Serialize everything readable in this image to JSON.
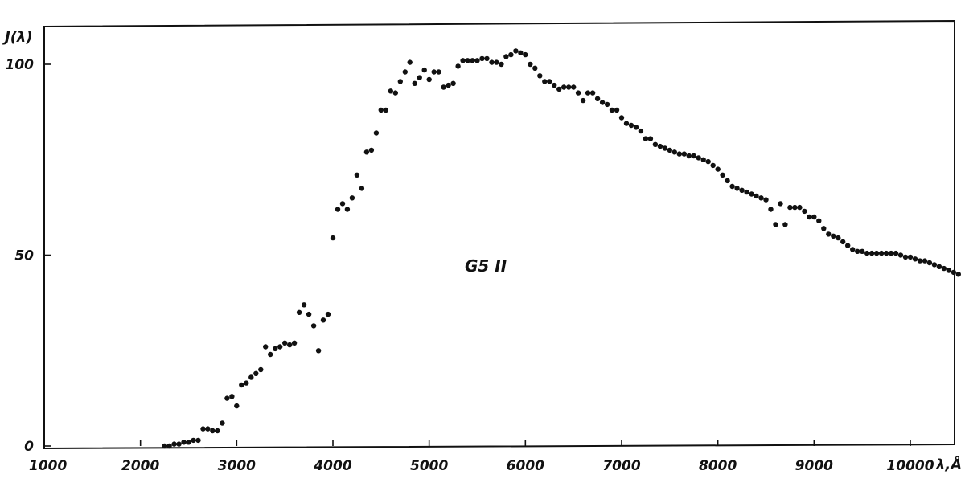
{
  "chart_data": {
    "type": "scatter",
    "title": "",
    "xlabel": "λ,Å",
    "ylabel": "J(λ)",
    "annotation": "G5 II",
    "xlim": [
      1000,
      10600
    ],
    "ylim": [
      0,
      110
    ],
    "grid": false,
    "legend": "none",
    "xticks": [
      1000,
      2000,
      3000,
      4000,
      5000,
      6000,
      7000,
      8000,
      9000,
      10000
    ],
    "yticks": [
      0,
      50,
      100
    ],
    "series": [
      {
        "x": [
          2250,
          2300,
          2350,
          2400,
          2450,
          2500,
          2550,
          2600,
          2650,
          2700,
          2750,
          2800,
          2850,
          2900,
          2950,
          3000,
          3050,
          3100,
          3150,
          3200,
          3250,
          3300,
          3350,
          3400,
          3450,
          3500,
          3550,
          3600,
          3650,
          3700,
          3750,
          3800,
          3850,
          3900,
          3950,
          4000,
          4050,
          4100,
          4150,
          4200,
          4250,
          4300,
          4350,
          4400,
          4450,
          4500,
          4550,
          4600,
          4650,
          4700,
          4750,
          4800,
          4850,
          4900,
          4950,
          5000,
          5050,
          5100,
          5150,
          5200,
          5250,
          5300,
          5350,
          5400,
          5450,
          5500,
          5550,
          5600,
          5650,
          5700,
          5750,
          5800,
          5850,
          5900,
          5950,
          6000,
          6050,
          6100,
          6150,
          6200,
          6250,
          6300,
          6350,
          6400,
          6450,
          6500,
          6550,
          6600,
          6650,
          6700,
          6750,
          6800,
          6850,
          6900,
          6950,
          7000,
          7050,
          7100,
          7150,
          7200,
          7250,
          7300,
          7350,
          7400,
          7450,
          7500,
          7550,
          7600,
          7650,
          7700,
          7750,
          7800,
          7850,
          7900,
          7950,
          8000,
          8050,
          8100,
          8150,
          8200,
          8250,
          8300,
          8350,
          8400,
          8450,
          8500,
          8550,
          8600,
          8650,
          8700,
          8750,
          8800,
          8850,
          8900,
          8950,
          9000,
          9050,
          9100,
          9150,
          9200,
          9250,
          9300,
          9350,
          9400,
          9450,
          9500,
          9550,
          9600,
          9650,
          9700,
          9750,
          9800,
          9850,
          9900,
          9950,
          10000,
          10050,
          10100,
          10150,
          10200,
          10250,
          10300,
          10350,
          10400,
          10450,
          10500
        ],
        "y": [
          0,
          0,
          0.5,
          0.5,
          1,
          1,
          1.5,
          1.5,
          4.5,
          4.5,
          4,
          4,
          6,
          12.5,
          13,
          10.5,
          16,
          16.5,
          18,
          19,
          20,
          26,
          24,
          25.5,
          26,
          27,
          26.5,
          27,
          35,
          37,
          34.5,
          31.5,
          25,
          33,
          34.5,
          54.5,
          62,
          63.5,
          62,
          65,
          71,
          67.5,
          77,
          77.5,
          82,
          88,
          88,
          93,
          92.5,
          95.5,
          98,
          100.5,
          95,
          96.5,
          98.5,
          96,
          98,
          98,
          94,
          94.5,
          95,
          99.5,
          101,
          101,
          101,
          101,
          101.5,
          101.5,
          100.5,
          100.5,
          100,
          102,
          102.5,
          103.5,
          103,
          102.5,
          100,
          99,
          97,
          95.5,
          95.5,
          94.5,
          93.5,
          94,
          94,
          94,
          92.5,
          90.5,
          92.5,
          92.5,
          91,
          90,
          89.5,
          88,
          88,
          86,
          84.5,
          84,
          83.5,
          82.5,
          80.5,
          80.5,
          79,
          78.5,
          78,
          77.5,
          77,
          76.5,
          76.5,
          76,
          76,
          75.5,
          75,
          74.5,
          73.5,
          72.5,
          71,
          69.5,
          68,
          67.5,
          67,
          66.5,
          66,
          65.5,
          65,
          64.5,
          62,
          58,
          63.5,
          58,
          62.5,
          62.5,
          62.5,
          61.5,
          60,
          60,
          59,
          57,
          55.5,
          55,
          54.5,
          53.5,
          52.5,
          51.5,
          51,
          51,
          50.5,
          50.5,
          50.5,
          50.5,
          50.5,
          50.5,
          50.5,
          50,
          49.5,
          49.5,
          49,
          48.5,
          48.5,
          48,
          47.5,
          47,
          46.5,
          46,
          45.5,
          45
        ]
      }
    ]
  }
}
